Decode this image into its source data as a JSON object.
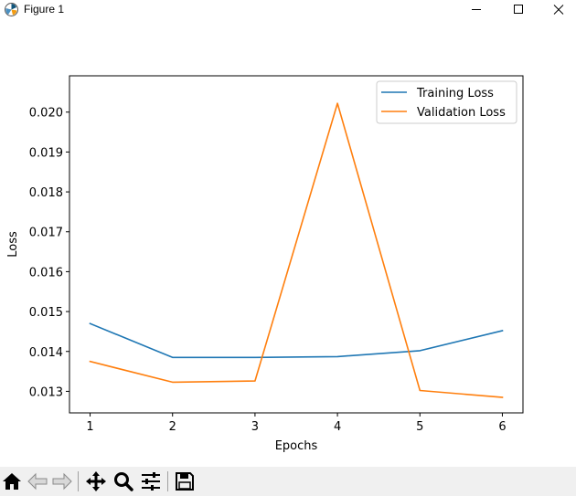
{
  "window": {
    "title": "Figure 1",
    "icons": [
      "matplotlib-logo-icon",
      "minimize-icon",
      "maximize-icon",
      "close-icon"
    ]
  },
  "toolbar": {
    "buttons": [
      "home-icon",
      "back-arrow-icon",
      "forward-arrow-icon",
      "pan-icon",
      "zoom-icon",
      "configure-subplots-icon",
      "save-icon"
    ]
  },
  "chart_data": {
    "type": "line",
    "title": "",
    "xlabel": "Epochs",
    "ylabel": "Loss",
    "x": [
      1,
      2,
      3,
      4,
      5,
      6
    ],
    "xticks": [
      "1",
      "2",
      "3",
      "4",
      "5",
      "6"
    ],
    "yticks": [
      "0.013",
      "0.014",
      "0.015",
      "0.016",
      "0.017",
      "0.018",
      "0.019",
      "0.020"
    ],
    "xlim": [
      0.75,
      6.25
    ],
    "ylim": [
      0.01246,
      0.02091
    ],
    "grid": false,
    "legend_position": "upper right",
    "series": [
      {
        "name": "Training Loss",
        "color": "#1f77b4",
        "values": [
          0.0147,
          0.01385,
          0.01385,
          0.01387,
          0.01402,
          0.01452
        ]
      },
      {
        "name": "Validation Loss",
        "color": "#ff7f0e",
        "values": [
          0.01375,
          0.01323,
          0.01326,
          0.02022,
          0.01302,
          0.01285
        ]
      }
    ]
  }
}
